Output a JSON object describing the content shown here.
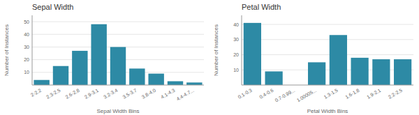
{
  "chart_data": [
    {
      "type": "bar",
      "title": "Sepal Width",
      "xlabel": "Sepal Width Bins",
      "ylabel": "Number of Instances",
      "categories": [
        "2-2.2",
        "2.3-2.5",
        "2.6-2.8",
        "2.9-3.1",
        "3.2-3.4",
        "3.5-3.7",
        "3.8-4.0",
        "4.1-4.3",
        "4.4-4.7..."
      ],
      "values": [
        4,
        15,
        27,
        48,
        30,
        13,
        9,
        3,
        2
      ],
      "color": "#2d8aa5",
      "ylim": [
        0,
        55
      ],
      "yticks": [
        10,
        20,
        30,
        40,
        50
      ],
      "grid": true
    },
    {
      "type": "bar",
      "title": "Petal Width",
      "xlabel": "Petal Width Bins",
      "ylabel": "Number of Instances",
      "categories": [
        "0.1-0.3",
        "0.4-0.6",
        "0.7-0.99...",
        "1.00005...",
        "1.3-1.5",
        "1.6-1.8",
        "1.9-2.1",
        "2.2-2.5"
      ],
      "values": [
        41,
        9,
        0,
        15,
        33,
        18,
        17,
        17
      ],
      "color": "#2d8aa5",
      "ylim": [
        0,
        46
      ],
      "yticks": [
        10,
        20,
        30,
        40
      ],
      "grid": true
    }
  ]
}
